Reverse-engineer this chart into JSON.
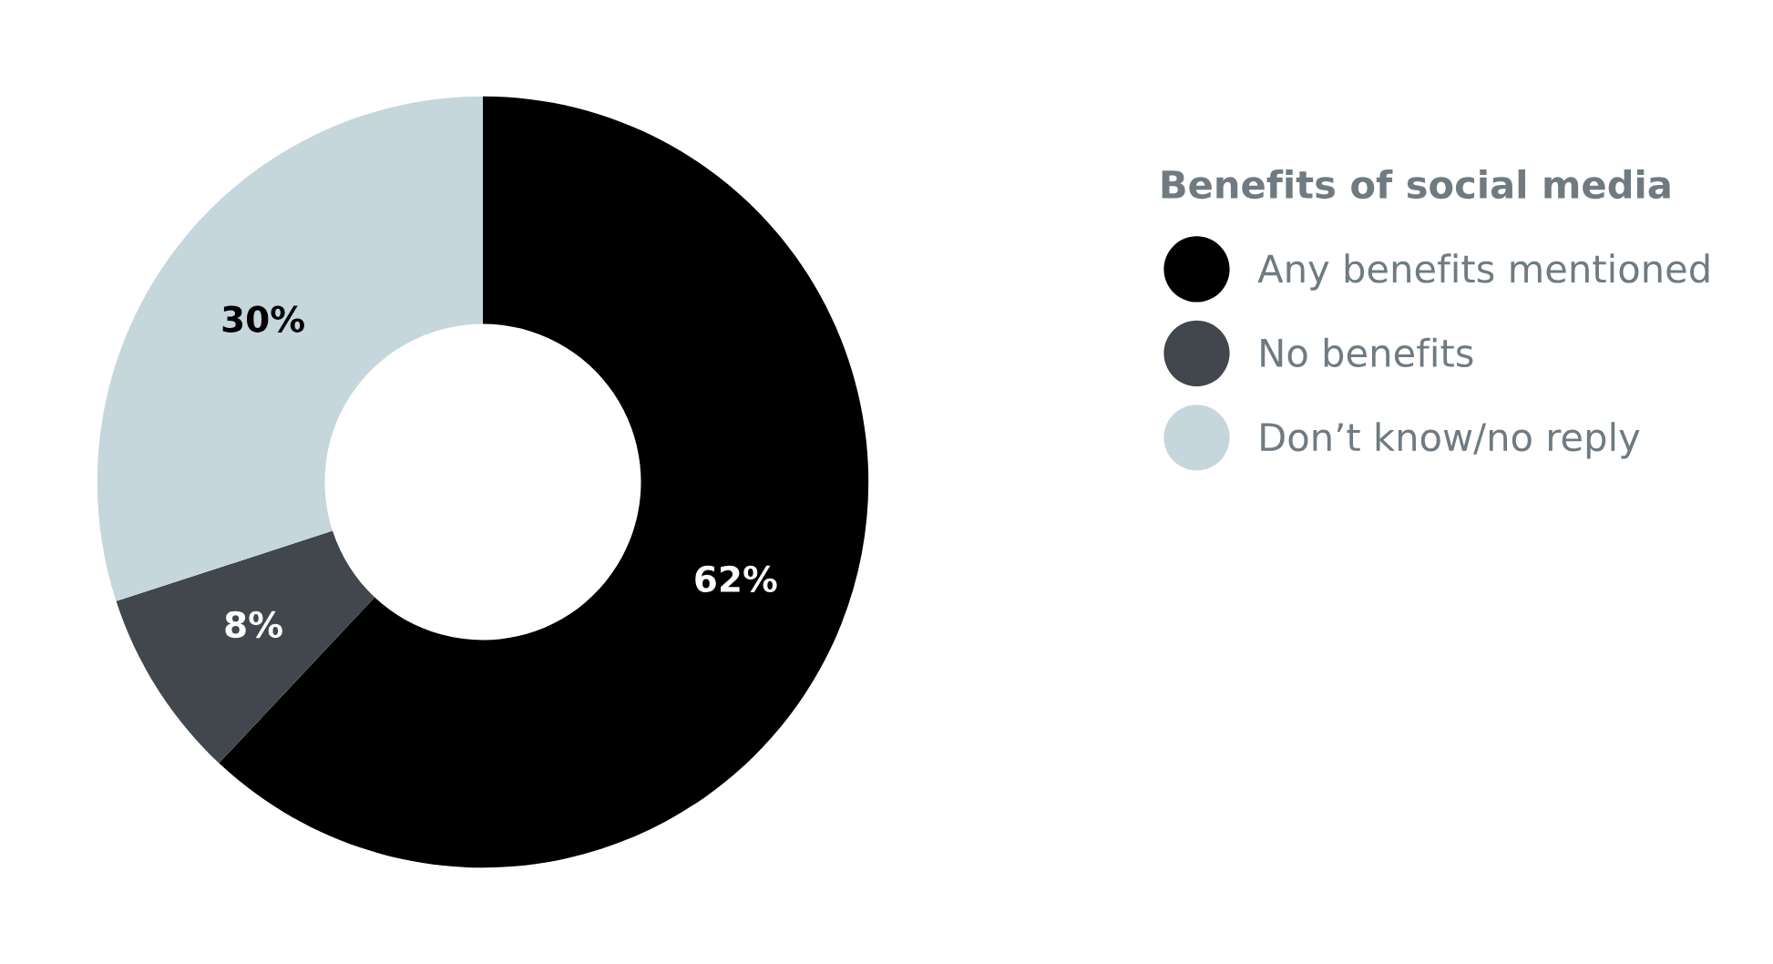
{
  "chart_data": {
    "type": "donut",
    "legend_title": "Benefits of social media",
    "categories": [
      "Any benefits mentioned",
      "No benefits",
      "Don’t know/no reply"
    ],
    "values": [
      62,
      8,
      30
    ],
    "colors": [
      "#000000",
      "#41474c",
      "#c6d6dd"
    ],
    "value_labels": [
      "62%",
      "8%",
      "30%"
    ],
    "legend": "right"
  }
}
